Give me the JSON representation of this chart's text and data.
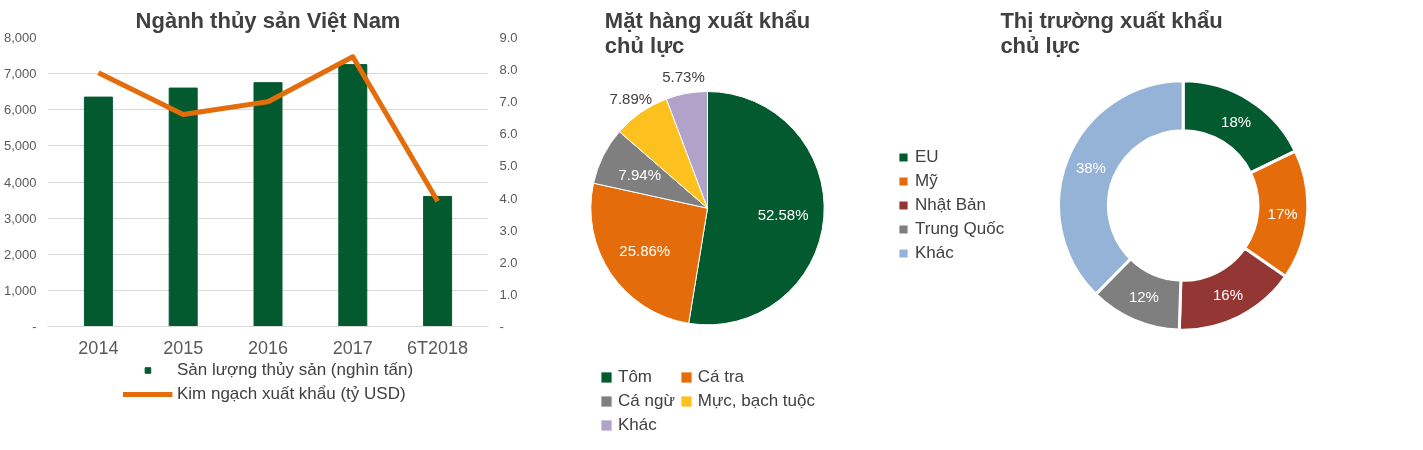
{
  "chart_data": [
    {
      "type": "bar",
      "title": "Ngành thủy sản Việt Nam",
      "categories": [
        "2014",
        "2015",
        "2016",
        "2017",
        "6T2018"
      ],
      "series": [
        {
          "name": "Sản lượng thủy sản (nghìn tấn)",
          "color": "#045a2f",
          "values": [
            6350,
            6600,
            6750,
            7250,
            3600
          ]
        },
        {
          "name": "Kim ngạch xuất khẩu (tỷ USD)",
          "type": "line",
          "axis": "y2",
          "color": "#e46c0a",
          "values": [
            7.9,
            6.6,
            7.0,
            8.4,
            3.9
          ]
        }
      ],
      "ylim": [
        0,
        8000
      ],
      "yticks": [
        {
          "value": 0,
          "label": "-"
        },
        {
          "value": 1000,
          "label": "1,000"
        },
        {
          "value": 2000,
          "label": "2,000"
        },
        {
          "value": 3000,
          "label": "3,000"
        },
        {
          "value": 4000,
          "label": "4,000"
        },
        {
          "value": 5000,
          "label": "5,000"
        },
        {
          "value": 6000,
          "label": "6,000"
        },
        {
          "value": 7000,
          "label": "7,000"
        },
        {
          "value": 8000,
          "label": "8,000"
        }
      ],
      "y2lim": [
        0,
        9
      ],
      "y2ticks": [
        {
          "value": 0,
          "label": "-"
        },
        {
          "value": 1,
          "label": "1.0"
        },
        {
          "value": 2,
          "label": "2.0"
        },
        {
          "value": 3,
          "label": "3.0"
        },
        {
          "value": 4,
          "label": "4.0"
        },
        {
          "value": 5,
          "label": "5.0"
        },
        {
          "value": 6,
          "label": "6.0"
        },
        {
          "value": 7,
          "label": "7.0"
        },
        {
          "value": 8,
          "label": "8.0"
        },
        {
          "value": 9,
          "label": "9.0"
        }
      ],
      "grid": "y",
      "legend": "bottom"
    },
    {
      "type": "pie",
      "title": "Mặt hàng xuất khẩu chủ lực",
      "categories": [
        "Tôm",
        "Cá tra",
        "Cá ngừ",
        "Mực, bạch tuộc",
        "Khác"
      ],
      "values": [
        52.58,
        25.86,
        7.94,
        7.89,
        5.73
      ],
      "colors": [
        "#045a2f",
        "#e46c0a",
        "#7f7f7f",
        "#fdc11f",
        "#b0a2c8"
      ],
      "value_labels": [
        "52.58%",
        "25.86%",
        "7.94%",
        "7.89%",
        "5.73%"
      ],
      "legend": "bottom"
    },
    {
      "type": "donut",
      "title": "Thị trường xuất khẩu chủ lực",
      "categories": [
        "EU",
        "Mỹ",
        "Nhật Bản",
        "Trung Quốc",
        "Khác"
      ],
      "values": [
        18,
        17,
        16,
        12,
        38
      ],
      "colors": [
        "#045a2f",
        "#e46c0a",
        "#943634",
        "#7f7f7f",
        "#95b3d7"
      ],
      "value_labels": [
        "18%",
        "17%",
        "16%",
        "12%",
        "38%"
      ],
      "legend": "left"
    }
  ]
}
